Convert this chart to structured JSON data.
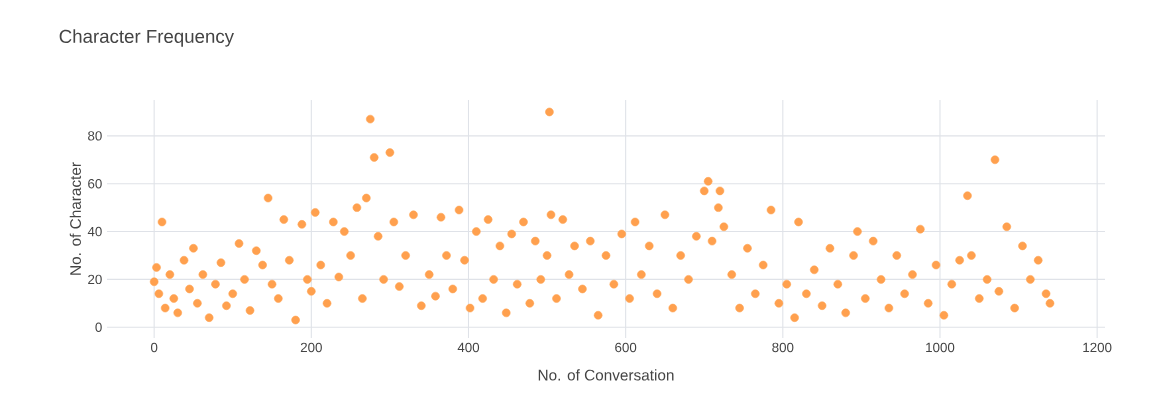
{
  "chart_data": {
    "type": "scatter",
    "title": "Character Frequency",
    "xlabel": "No. of Conversation",
    "ylabel": "No. of Character",
    "x": [
      0,
      3,
      6,
      10,
      14,
      20,
      25,
      30,
      38,
      45,
      50,
      55,
      62,
      70,
      78,
      85,
      92,
      100,
      108,
      115,
      122,
      130,
      138,
      145,
      150,
      158,
      165,
      172,
      180,
      188,
      195,
      200,
      205,
      212,
      220,
      228,
      235,
      242,
      250,
      258,
      265,
      270,
      275,
      280,
      285,
      292,
      300,
      305,
      312,
      320,
      330,
      340,
      350,
      358,
      365,
      372,
      380,
      388,
      395,
      402,
      410,
      418,
      425,
      432,
      440,
      448,
      455,
      462,
      470,
      478,
      485,
      492,
      500,
      503,
      505,
      512,
      520,
      528,
      535,
      545,
      555,
      565,
      575,
      585,
      595,
      605,
      612,
      620,
      630,
      640,
      650,
      660,
      670,
      680,
      690,
      700,
      705,
      710,
      718,
      720,
      725,
      735,
      745,
      755,
      765,
      775,
      785,
      795,
      805,
      815,
      820,
      830,
      840,
      850,
      860,
      870,
      880,
      890,
      895,
      905,
      915,
      925,
      935,
      945,
      955,
      965,
      975,
      985,
      995,
      1005,
      1015,
      1025,
      1035,
      1040,
      1050,
      1060,
      1070,
      1075,
      1085,
      1095,
      1105,
      1115,
      1125,
      1135,
      1140
    ],
    "values": [
      19,
      25,
      14,
      44,
      8,
      22,
      12,
      6,
      28,
      16,
      33,
      10,
      22,
      4,
      18,
      27,
      9,
      14,
      35,
      20,
      7,
      32,
      26,
      54,
      18,
      12,
      45,
      28,
      3,
      43,
      20,
      15,
      48,
      26,
      10,
      44,
      21,
      40,
      30,
      50,
      12,
      54,
      87,
      71,
      38,
      20,
      73,
      44,
      17,
      30,
      47,
      9,
      22,
      13,
      46,
      30,
      16,
      49,
      28,
      8,
      40,
      12,
      45,
      20,
      34,
      6,
      39,
      18,
      44,
      10,
      36,
      20,
      30,
      90,
      47,
      12,
      45,
      22,
      34,
      16,
      36,
      5,
      30,
      18,
      39,
      12,
      44,
      22,
      34,
      14,
      47,
      8,
      30,
      20,
      38,
      57,
      61,
      36,
      50,
      57,
      42,
      22,
      8,
      33,
      14,
      26,
      49,
      10,
      18,
      4,
      44,
      14,
      24,
      9,
      33,
      18,
      6,
      30,
      40,
      12,
      36,
      20,
      8,
      30,
      14,
      22,
      41,
      10,
      26,
      5,
      18,
      28,
      55,
      30,
      12,
      20,
      70,
      15,
      42,
      8,
      34,
      20,
      28,
      14,
      10
    ],
    "color": "#ffa04e",
    "xlim": [
      -60,
      1210
    ],
    "ylim": [
      -4.5,
      95
    ],
    "xticks": [
      0,
      200,
      400,
      600,
      800,
      1000,
      1200
    ],
    "yticks": [
      0,
      20,
      40,
      60,
      80
    ],
    "grid": true
  }
}
